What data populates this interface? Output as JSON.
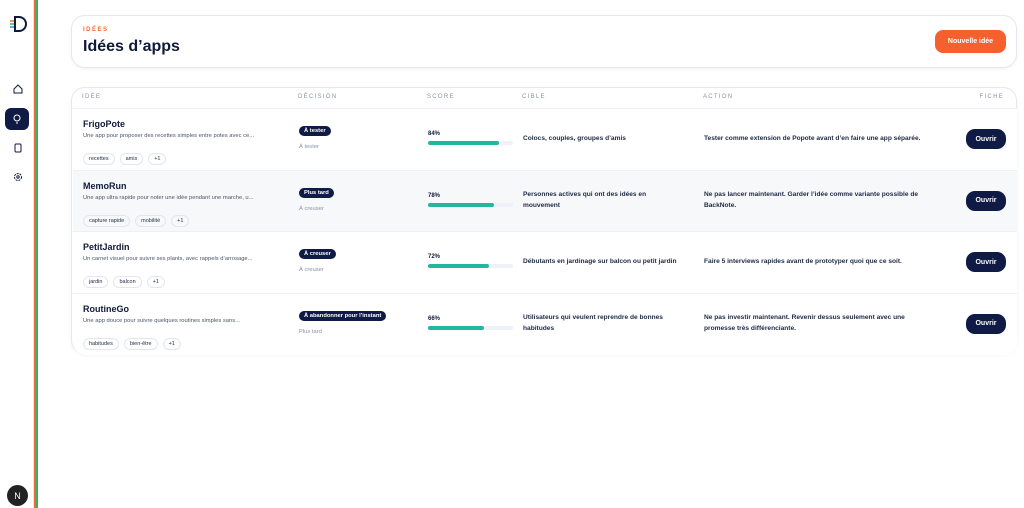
{
  "sidebar": {
    "avatar": "N"
  },
  "header": {
    "eyebrow": "IDÉES",
    "title": "Idées d’apps",
    "button": "Nouvelle idée"
  },
  "table": {
    "columns": [
      "IDÉE",
      "DÉCISION",
      "SCORE",
      "CIBLE",
      "ACTION",
      "FICHE"
    ],
    "rows": [
      {
        "name": "FrigoPote",
        "description": "Une app pour proposer des recettes simples entre potes avec ce...",
        "tags": [
          "recettes",
          "amis",
          "+1"
        ],
        "decision": "À tester",
        "decision_sub": "À tester",
        "score": {
          "value": 84,
          "label": "84%"
        },
        "target": "Colocs, couples, groupes d’amis",
        "action": "Tester comme extension de Popote avant d’en faire une app séparée.",
        "button": "Ouvrir"
      },
      {
        "name": "MemoRun",
        "description": "Une app ultra rapide pour noter une idée pendant une marche, u...",
        "tags": [
          "capture rapide",
          "mobilité",
          "+1"
        ],
        "decision": "Plus tard",
        "decision_sub": "À creuser",
        "score": {
          "value": 78,
          "label": "78%"
        },
        "target": "Personnes actives qui ont des idées en mouvement",
        "action": "Ne pas lancer maintenant. Garder l’idée comme variante possible de BackNote.",
        "button": "Ouvrir"
      },
      {
        "name": "PetitJardin",
        "description": "Un carnet visuel pour suivre ses plants, avec rappels d’arrosage...",
        "tags": [
          "jardin",
          "balcon",
          "+1"
        ],
        "decision": "À creuser",
        "decision_sub": "À creuser",
        "score": {
          "value": 72,
          "label": "72%"
        },
        "target": "Débutants en jardinage sur balcon ou petit jardin",
        "action": "Faire 5 interviews rapides avant de prototyper quoi que ce soit.",
        "button": "Ouvrir"
      },
      {
        "name": "RoutineGo",
        "description": "Une app douce pour suivre quelques routines simples sans...",
        "tags": [
          "habitudes",
          "bien-être",
          "+1"
        ],
        "decision": "À abandonner pour l’instant",
        "decision_sub": "Plus tard",
        "score": {
          "value": 66,
          "label": "66%"
        },
        "target": "Utilisateurs qui veulent reprendre de bonnes habitudes",
        "action": "Ne pas investir maintenant. Revenir dessus seulement avec une promesse très différenciante.",
        "button": "Ouvrir"
      }
    ]
  }
}
